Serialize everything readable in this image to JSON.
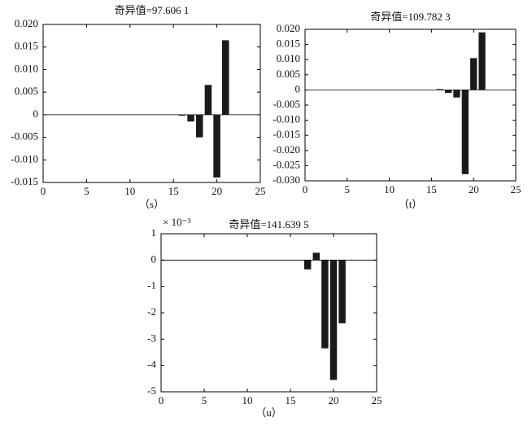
{
  "chart_data": [
    {
      "type": "bar",
      "title": "奇异值=97.606 1",
      "caption": "（s）",
      "color": "#1a1a1a",
      "x": [
        1,
        2,
        3,
        4,
        5,
        6,
        7,
        8,
        9,
        10,
        11,
        12,
        13,
        14,
        15,
        16,
        17,
        18,
        19,
        20,
        21
      ],
      "values": [
        0,
        0,
        0,
        0,
        0,
        0,
        0,
        0,
        0,
        0,
        0,
        0,
        0,
        0,
        0,
        -0.0002,
        -0.0015,
        -0.005,
        0.0066,
        -0.0139,
        0.0165
      ],
      "xlim": [
        0,
        25
      ],
      "xticks": [
        0,
        5,
        10,
        15,
        20,
        25
      ],
      "ylim": [
        -0.015,
        0.02
      ],
      "yticks": [
        -0.015,
        {
          "value": -0.01,
          "label": "-0.010"
        },
        -0.005,
        0,
        0.005,
        {
          "value": 0.01,
          "label": "0.010"
        },
        0.015,
        {
          "value": 0.02,
          "label": "0.020"
        }
      ]
    },
    {
      "type": "bar",
      "title": "奇异值=109.782 3",
      "caption": "（t）",
      "color": "#1a1a1a",
      "x": [
        1,
        2,
        3,
        4,
        5,
        6,
        7,
        8,
        9,
        10,
        11,
        12,
        13,
        14,
        15,
        16,
        17,
        18,
        19,
        20,
        21
      ],
      "values": [
        0,
        0,
        0,
        0,
        0,
        0,
        0,
        0,
        0,
        0,
        0,
        0,
        0,
        0,
        0,
        0.0003,
        -0.001,
        -0.0025,
        -0.0278,
        0.0105,
        0.019
      ],
      "xlim": [
        0,
        25
      ],
      "xticks": [
        0,
        5,
        10,
        15,
        20,
        25
      ],
      "ylim": [
        -0.03,
        0.02
      ],
      "yticks": [
        {
          "value": -0.03,
          "label": "-0.030"
        },
        -0.025,
        {
          "value": -0.02,
          "label": "-0.020"
        },
        -0.015,
        {
          "value": -0.01,
          "label": "-0.010"
        },
        -0.005,
        0,
        0.005,
        {
          "value": 0.01,
          "label": "0.010"
        },
        0.015,
        {
          "value": 0.02,
          "label": "0.020"
        }
      ]
    },
    {
      "type": "bar",
      "title": "奇异值=141.639 5",
      "caption": "（u）",
      "scale_label": "× 10⁻³",
      "color": "#1a1a1a",
      "x": [
        1,
        2,
        3,
        4,
        5,
        6,
        7,
        8,
        9,
        10,
        11,
        12,
        13,
        14,
        15,
        16,
        17,
        18,
        19,
        20,
        21
      ],
      "values": [
        0,
        0,
        0,
        0,
        0,
        0,
        0,
        0,
        0,
        0,
        0,
        0,
        0,
        0,
        0,
        0,
        -0.35,
        0.28,
        -3.35,
        -4.55,
        -2.4
      ],
      "xlim": [
        0,
        25
      ],
      "xticks": [
        0,
        5,
        10,
        15,
        20,
        25
      ],
      "ylim": [
        -5,
        1
      ],
      "yticks": [
        -5,
        -4,
        -3,
        -2,
        -1,
        0,
        1
      ]
    }
  ]
}
